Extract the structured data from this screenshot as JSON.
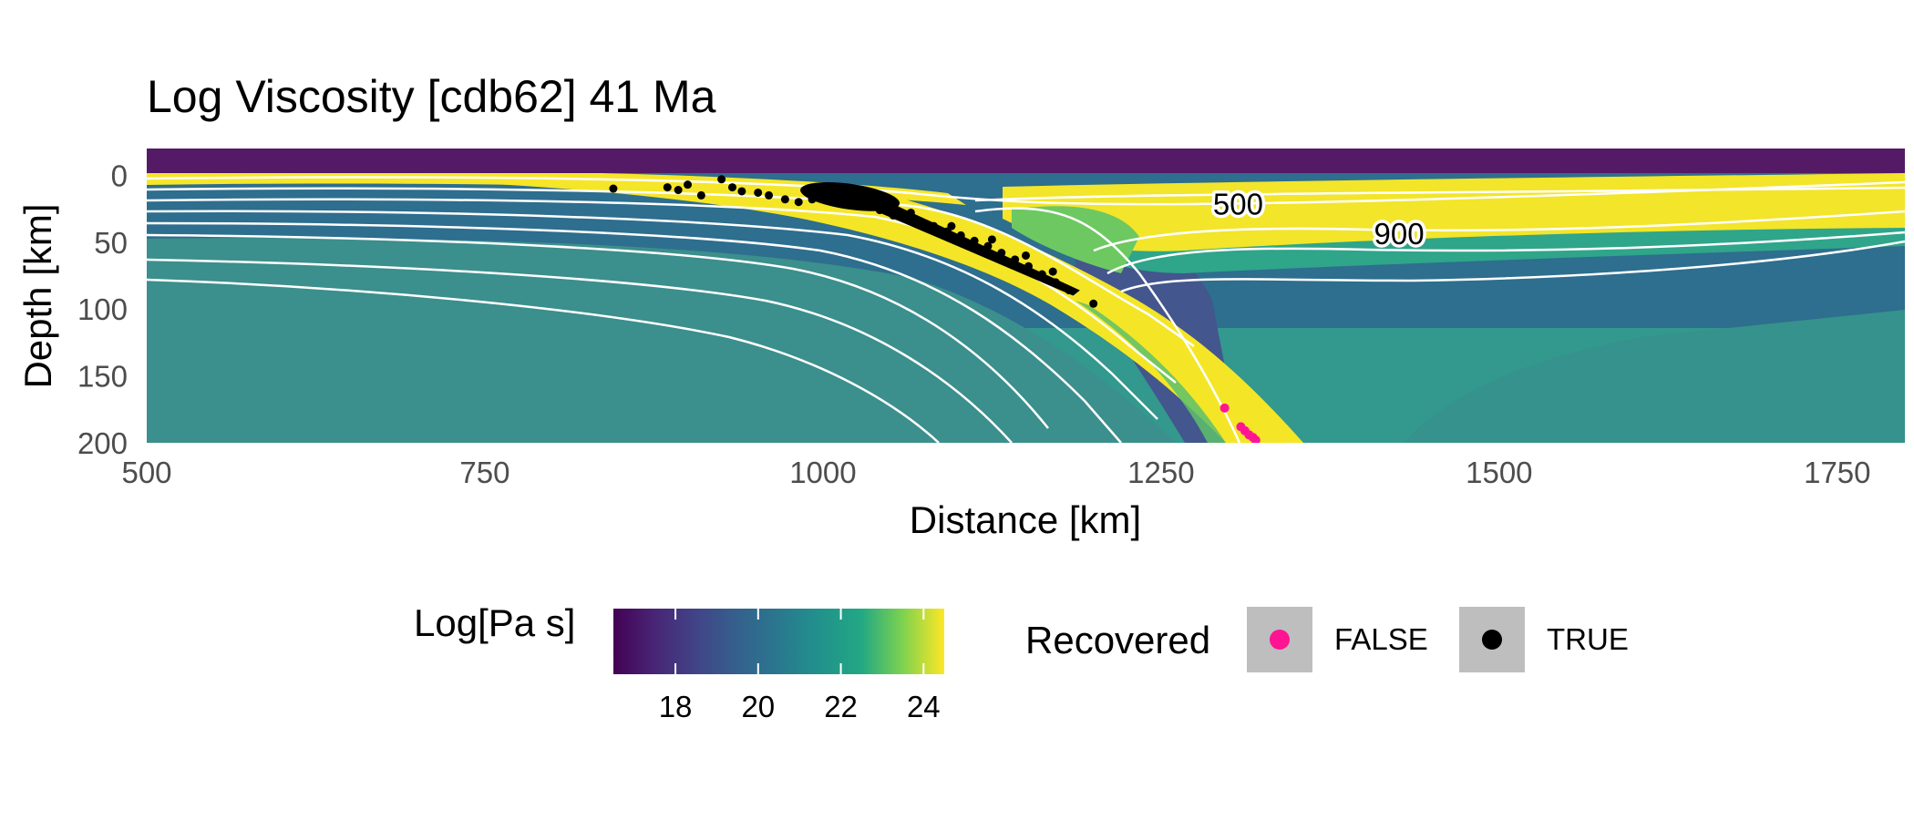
{
  "chart_data": {
    "type": "heatmap",
    "title": "Log Viscosity [cdb62] 41 Ma",
    "xlabel": "Distance [km]",
    "ylabel": "Depth [km]",
    "xlim": [
      500,
      1800
    ],
    "ylim": [
      -20,
      200
    ],
    "y_reversed": true,
    "x_ticks": [
      500,
      750,
      1000,
      1250,
      1500,
      1750
    ],
    "y_ticks": [
      0,
      50,
      100,
      150,
      200
    ],
    "grid": false,
    "colorbar": {
      "title": "Log[Pa s]",
      "colormap": "viridis",
      "range": [
        16.5,
        24.5
      ],
      "ticks": [
        18,
        20,
        22,
        24
      ]
    },
    "contour_labels": [
      {
        "label": "500",
        "x": 1307,
        "y": 22
      },
      {
        "label": "900",
        "x": 1426,
        "y": 44
      }
    ],
    "points_legend": {
      "title": "Recovered",
      "entries": [
        {
          "label": "FALSE",
          "color": "#ff1493"
        },
        {
          "label": "TRUE",
          "color": "#000000"
        }
      ]
    },
    "points_false": [
      [
        1297,
        174
      ],
      [
        1309,
        188
      ],
      [
        1312,
        191
      ],
      [
        1315,
        194
      ],
      [
        1318,
        196
      ],
      [
        1320,
        198
      ]
    ],
    "points_true": [
      [
        845,
        10
      ],
      [
        885,
        9
      ],
      [
        893,
        11
      ],
      [
        925,
        3
      ],
      [
        933,
        9
      ],
      [
        940,
        12
      ],
      [
        952,
        13
      ],
      [
        960,
        15
      ],
      [
        972,
        18
      ],
      [
        982,
        20
      ],
      [
        992,
        18
      ],
      [
        1002,
        16
      ],
      [
        1012,
        17
      ],
      [
        1022,
        20
      ],
      [
        1032,
        22
      ],
      [
        1042,
        26
      ],
      [
        1052,
        30
      ],
      [
        1062,
        32
      ],
      [
        1072,
        35
      ],
      [
        1082,
        38
      ],
      [
        1092,
        42
      ],
      [
        1102,
        45
      ],
      [
        1112,
        49
      ],
      [
        1122,
        53
      ],
      [
        1132,
        58
      ],
      [
        1142,
        63
      ],
      [
        1152,
        68
      ],
      [
        1162,
        74
      ],
      [
        1172,
        80
      ],
      [
        1182,
        86
      ],
      [
        1200,
        96
      ],
      [
        995,
        12
      ],
      [
        1015,
        10
      ],
      [
        1030,
        14
      ],
      [
        1045,
        18
      ],
      [
        910,
        15
      ],
      [
        900,
        7
      ],
      [
        1065,
        28
      ],
      [
        1095,
        38
      ],
      [
        1125,
        48
      ],
      [
        1150,
        60
      ],
      [
        1170,
        72
      ]
    ]
  }
}
